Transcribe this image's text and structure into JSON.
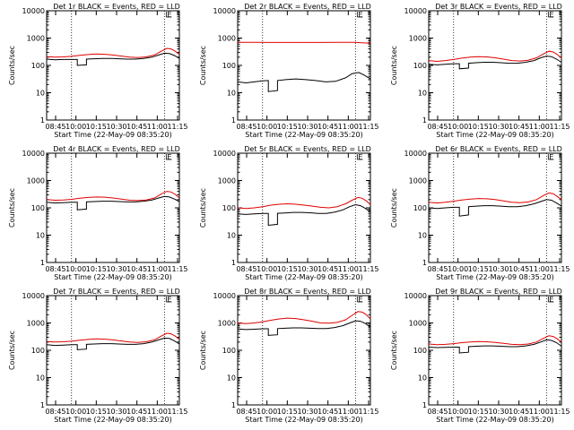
{
  "figure": {
    "colors": {
      "events": "#000000",
      "lld": "#e00000",
      "axes": "#000000"
    },
    "x_tick_labels": [
      "08:45",
      "10:00",
      "10:15",
      "10:30",
      "10:45",
      "11:00",
      "11:15"
    ],
    "xlabel": "Start Time (22-May-09 08:35:20)",
    "ylabel": "Counts/sec",
    "y_tick_labels": [
      "1",
      "10",
      "100",
      "1000",
      "10000"
    ]
  },
  "chart_data": [
    {
      "type": "line",
      "title": "Det 1r BLACK = Events, RED = LLD",
      "xlabel": "Start Time (22-May-09 08:35:20)",
      "ylabel": "Counts/sec",
      "x_unit": "minutes after 08:35:20",
      "xlim": [
        0,
        160
      ],
      "ylim": [
        1,
        10000
      ],
      "yscale": "log",
      "vlines": [
        30,
        142
      ],
      "annotation": "E",
      "series": [
        {
          "name": "Events",
          "color": "#000000",
          "x": [
            0,
            10,
            20,
            30,
            37,
            37,
            48,
            48,
            57,
            67,
            77,
            87,
            97,
            107,
            117,
            127,
            135,
            142,
            148,
            154,
            160
          ],
          "y": [
            170,
            160,
            165,
            165,
            165,
            100,
            105,
            170,
            175,
            180,
            180,
            175,
            170,
            170,
            180,
            200,
            240,
            280,
            270,
            230,
            180
          ]
        },
        {
          "name": "LLD",
          "color": "#e00000",
          "x": [
            0,
            10,
            20,
            30,
            40,
            50,
            60,
            70,
            80,
            90,
            100,
            110,
            120,
            130,
            138,
            145,
            150,
            155,
            160
          ],
          "y": [
            210,
            200,
            205,
            215,
            235,
            250,
            260,
            255,
            240,
            220,
            200,
            195,
            205,
            240,
            330,
            420,
            400,
            330,
            250
          ]
        }
      ]
    },
    {
      "type": "line",
      "title": "Det 2r BLACK = Events, RED = LLD",
      "xlabel": "Start Time (22-May-09 08:35:20)",
      "ylabel": "Counts/sec",
      "x_unit": "minutes after 08:35:20",
      "xlim": [
        0,
        160
      ],
      "ylim": [
        1,
        10000
      ],
      "yscale": "log",
      "vlines": [
        30,
        142
      ],
      "annotation": "E",
      "series": [
        {
          "name": "Events",
          "color": "#000000",
          "x": [
            0,
            10,
            20,
            30,
            37,
            37,
            48,
            48,
            58,
            70,
            82,
            94,
            106,
            118,
            130,
            138,
            146,
            152,
            160
          ],
          "y": [
            25,
            23,
            25,
            27,
            28,
            11,
            12,
            28,
            30,
            32,
            30,
            28,
            25,
            26,
            35,
            50,
            55,
            45,
            32
          ]
        },
        {
          "name": "LLD",
          "color": "#e00000",
          "x": [
            0,
            20,
            40,
            60,
            80,
            100,
            120,
            140,
            160
          ],
          "y": [
            700,
            700,
            690,
            690,
            690,
            690,
            700,
            700,
            650
          ]
        }
      ]
    },
    {
      "type": "line",
      "title": "Det 3r BLACK = Events, RED = LLD",
      "xlabel": "Start Time (22-May-09 08:35:20)",
      "ylabel": "Counts/sec",
      "x_unit": "minutes after 08:35:20",
      "xlim": [
        0,
        160
      ],
      "ylim": [
        1,
        10000
      ],
      "yscale": "log",
      "vlines": [
        30,
        142
      ],
      "annotation": "E",
      "series": [
        {
          "name": "Events",
          "color": "#000000",
          "x": [
            0,
            10,
            20,
            30,
            37,
            37,
            48,
            48,
            57,
            67,
            77,
            87,
            97,
            107,
            117,
            127,
            135,
            142,
            148,
            154,
            160
          ],
          "y": [
            110,
            105,
            110,
            115,
            115,
            75,
            80,
            120,
            125,
            130,
            130,
            125,
            120,
            120,
            130,
            150,
            190,
            220,
            210,
            170,
            130
          ]
        },
        {
          "name": "LLD",
          "color": "#e00000",
          "x": [
            0,
            10,
            20,
            30,
            40,
            50,
            60,
            70,
            80,
            90,
            100,
            110,
            120,
            130,
            138,
            145,
            150,
            155,
            160
          ],
          "y": [
            150,
            140,
            150,
            165,
            185,
            200,
            210,
            205,
            190,
            170,
            150,
            145,
            155,
            190,
            260,
            330,
            310,
            250,
            190
          ]
        }
      ]
    },
    {
      "type": "line",
      "title": "Det 4r BLACK = Events, RED = LLD",
      "xlabel": "Start Time (22-May-09 08:35:20)",
      "ylabel": "Counts/sec",
      "x_unit": "minutes after 08:35:20",
      "xlim": [
        0,
        160
      ],
      "ylim": [
        1,
        10000
      ],
      "yscale": "log",
      "vlines": [
        30,
        142
      ],
      "annotation": "E",
      "series": [
        {
          "name": "Events",
          "color": "#000000",
          "x": [
            0,
            10,
            20,
            30,
            37,
            37,
            48,
            48,
            57,
            67,
            77,
            87,
            97,
            107,
            117,
            127,
            135,
            142,
            148,
            154,
            160
          ],
          "y": [
            160,
            150,
            155,
            160,
            160,
            85,
            90,
            165,
            170,
            175,
            175,
            170,
            165,
            165,
            175,
            195,
            230,
            260,
            250,
            210,
            170
          ]
        },
        {
          "name": "LLD",
          "color": "#e00000",
          "x": [
            0,
            10,
            20,
            30,
            40,
            50,
            60,
            70,
            80,
            90,
            100,
            110,
            120,
            130,
            138,
            145,
            150,
            155,
            160
          ],
          "y": [
            200,
            190,
            195,
            205,
            225,
            240,
            250,
            245,
            230,
            210,
            190,
            185,
            195,
            230,
            320,
            400,
            380,
            310,
            230
          ]
        }
      ]
    },
    {
      "type": "line",
      "title": "Det 5r BLACK = Events, RED = LLD",
      "xlabel": "Start Time (22-May-09 08:35:20)",
      "ylabel": "Counts/sec",
      "x_unit": "minutes after 08:35:20",
      "xlim": [
        0,
        160
      ],
      "ylim": [
        1,
        10000
      ],
      "yscale": "log",
      "vlines": [
        30,
        142
      ],
      "annotation": "E",
      "series": [
        {
          "name": "Events",
          "color": "#000000",
          "x": [
            0,
            10,
            20,
            30,
            37,
            37,
            48,
            48,
            57,
            67,
            77,
            87,
            97,
            107,
            117,
            127,
            135,
            142,
            148,
            154,
            160
          ],
          "y": [
            60,
            57,
            60,
            62,
            62,
            23,
            25,
            63,
            65,
            68,
            68,
            66,
            62,
            62,
            70,
            85,
            110,
            130,
            120,
            95,
            70
          ]
        },
        {
          "name": "LLD",
          "color": "#e00000",
          "x": [
            0,
            10,
            20,
            30,
            40,
            50,
            60,
            70,
            80,
            90,
            100,
            110,
            120,
            130,
            138,
            145,
            150,
            155,
            160
          ],
          "y": [
            100,
            95,
            100,
            110,
            125,
            135,
            140,
            135,
            125,
            115,
            105,
            100,
            110,
            140,
            190,
            240,
            225,
            180,
            130
          ]
        }
      ]
    },
    {
      "type": "line",
      "title": "Det 6r BLACK = Events, RED = LLD",
      "xlabel": "Start Time (22-May-09 08:35:20)",
      "ylabel": "Counts/sec",
      "x_unit": "minutes after 08:35:20",
      "xlim": [
        0,
        160
      ],
      "ylim": [
        1,
        10000
      ],
      "yscale": "log",
      "vlines": [
        30,
        142
      ],
      "annotation": "E",
      "series": [
        {
          "name": "Events",
          "color": "#000000",
          "x": [
            0,
            10,
            20,
            30,
            37,
            37,
            48,
            48,
            57,
            67,
            77,
            87,
            97,
            107,
            117,
            127,
            135,
            142,
            148,
            154,
            160
          ],
          "y": [
            100,
            95,
            100,
            105,
            105,
            50,
            55,
            110,
            115,
            120,
            120,
            115,
            110,
            110,
            120,
            140,
            170,
            200,
            190,
            150,
            115
          ]
        },
        {
          "name": "LLD",
          "color": "#e00000",
          "x": [
            0,
            10,
            20,
            30,
            40,
            50,
            60,
            70,
            80,
            90,
            100,
            110,
            120,
            130,
            138,
            145,
            150,
            155,
            160
          ],
          "y": [
            160,
            150,
            160,
            175,
            195,
            210,
            220,
            215,
            200,
            180,
            160,
            155,
            165,
            200,
            280,
            350,
            330,
            260,
            200
          ]
        }
      ]
    },
    {
      "type": "line",
      "title": "Det 7r BLACK = Events, RED = LLD",
      "xlabel": "Start Time (22-May-09 08:35:20)",
      "ylabel": "Counts/sec",
      "x_unit": "minutes after 08:35:20",
      "xlim": [
        0,
        160
      ],
      "ylim": [
        1,
        10000
      ],
      "yscale": "log",
      "vlines": [
        30,
        142
      ],
      "annotation": "E",
      "series": [
        {
          "name": "Events",
          "color": "#000000",
          "x": [
            0,
            10,
            20,
            30,
            37,
            37,
            48,
            48,
            57,
            67,
            77,
            87,
            97,
            107,
            117,
            127,
            135,
            142,
            148,
            154,
            160
          ],
          "y": [
            160,
            150,
            155,
            160,
            160,
            105,
            110,
            165,
            170,
            175,
            175,
            170,
            165,
            165,
            175,
            200,
            240,
            280,
            270,
            220,
            170
          ]
        },
        {
          "name": "LLD",
          "color": "#e00000",
          "x": [
            0,
            10,
            20,
            30,
            40,
            50,
            60,
            70,
            80,
            90,
            100,
            110,
            120,
            130,
            138,
            145,
            150,
            155,
            160
          ],
          "y": [
            210,
            200,
            205,
            215,
            235,
            250,
            260,
            255,
            240,
            220,
            200,
            195,
            205,
            240,
            330,
            420,
            400,
            330,
            250
          ]
        }
      ]
    },
    {
      "type": "line",
      "title": "Det 8r BLACK = Events, RED = LLD",
      "xlabel": "Start Time (22-May-09 08:35:20)",
      "ylabel": "Counts/sec",
      "x_unit": "minutes after 08:35:20",
      "xlim": [
        0,
        160
      ],
      "ylim": [
        1,
        10000
      ],
      "yscale": "log",
      "vlines": [
        30,
        142
      ],
      "annotation": "E",
      "series": [
        {
          "name": "Events",
          "color": "#000000",
          "x": [
            0,
            10,
            20,
            30,
            37,
            37,
            48,
            48,
            57,
            67,
            77,
            87,
            97,
            107,
            117,
            127,
            135,
            142,
            148,
            154,
            160
          ],
          "y": [
            600,
            570,
            590,
            610,
            610,
            350,
            370,
            620,
            640,
            660,
            660,
            640,
            620,
            620,
            680,
            800,
            1000,
            1200,
            1150,
            950,
            700
          ]
        },
        {
          "name": "LLD",
          "color": "#e00000",
          "x": [
            0,
            10,
            20,
            30,
            40,
            50,
            60,
            70,
            80,
            90,
            100,
            110,
            120,
            130,
            138,
            145,
            150,
            155,
            160
          ],
          "y": [
            1000,
            950,
            1000,
            1100,
            1250,
            1400,
            1500,
            1450,
            1300,
            1150,
            1000,
            980,
            1050,
            1300,
            1900,
            2600,
            2500,
            2000,
            1400
          ]
        }
      ]
    },
    {
      "type": "line",
      "title": "Det 9r BLACK = Events, RED = LLD",
      "xlabel": "Start Time (22-May-09 08:35:20)",
      "ylabel": "Counts/sec",
      "x_unit": "minutes after 08:35:20",
      "xlim": [
        0,
        160
      ],
      "ylim": [
        1,
        10000
      ],
      "yscale": "log",
      "vlines": [
        30,
        142
      ],
      "annotation": "E",
      "series": [
        {
          "name": "Events",
          "color": "#000000",
          "x": [
            0,
            10,
            20,
            30,
            37,
            37,
            48,
            48,
            57,
            67,
            77,
            87,
            97,
            107,
            117,
            127,
            135,
            142,
            148,
            154,
            160
          ],
          "y": [
            130,
            125,
            128,
            130,
            130,
            80,
            85,
            135,
            140,
            145,
            145,
            140,
            135,
            135,
            145,
            165,
            200,
            240,
            230,
            190,
            140
          ]
        },
        {
          "name": "LLD",
          "color": "#e00000",
          "x": [
            0,
            10,
            20,
            30,
            40,
            50,
            60,
            70,
            80,
            90,
            100,
            110,
            120,
            130,
            138,
            145,
            150,
            155,
            160
          ],
          "y": [
            170,
            160,
            165,
            175,
            190,
            200,
            210,
            205,
            195,
            180,
            165,
            160,
            170,
            200,
            270,
            340,
            320,
            260,
            200
          ]
        }
      ]
    }
  ]
}
